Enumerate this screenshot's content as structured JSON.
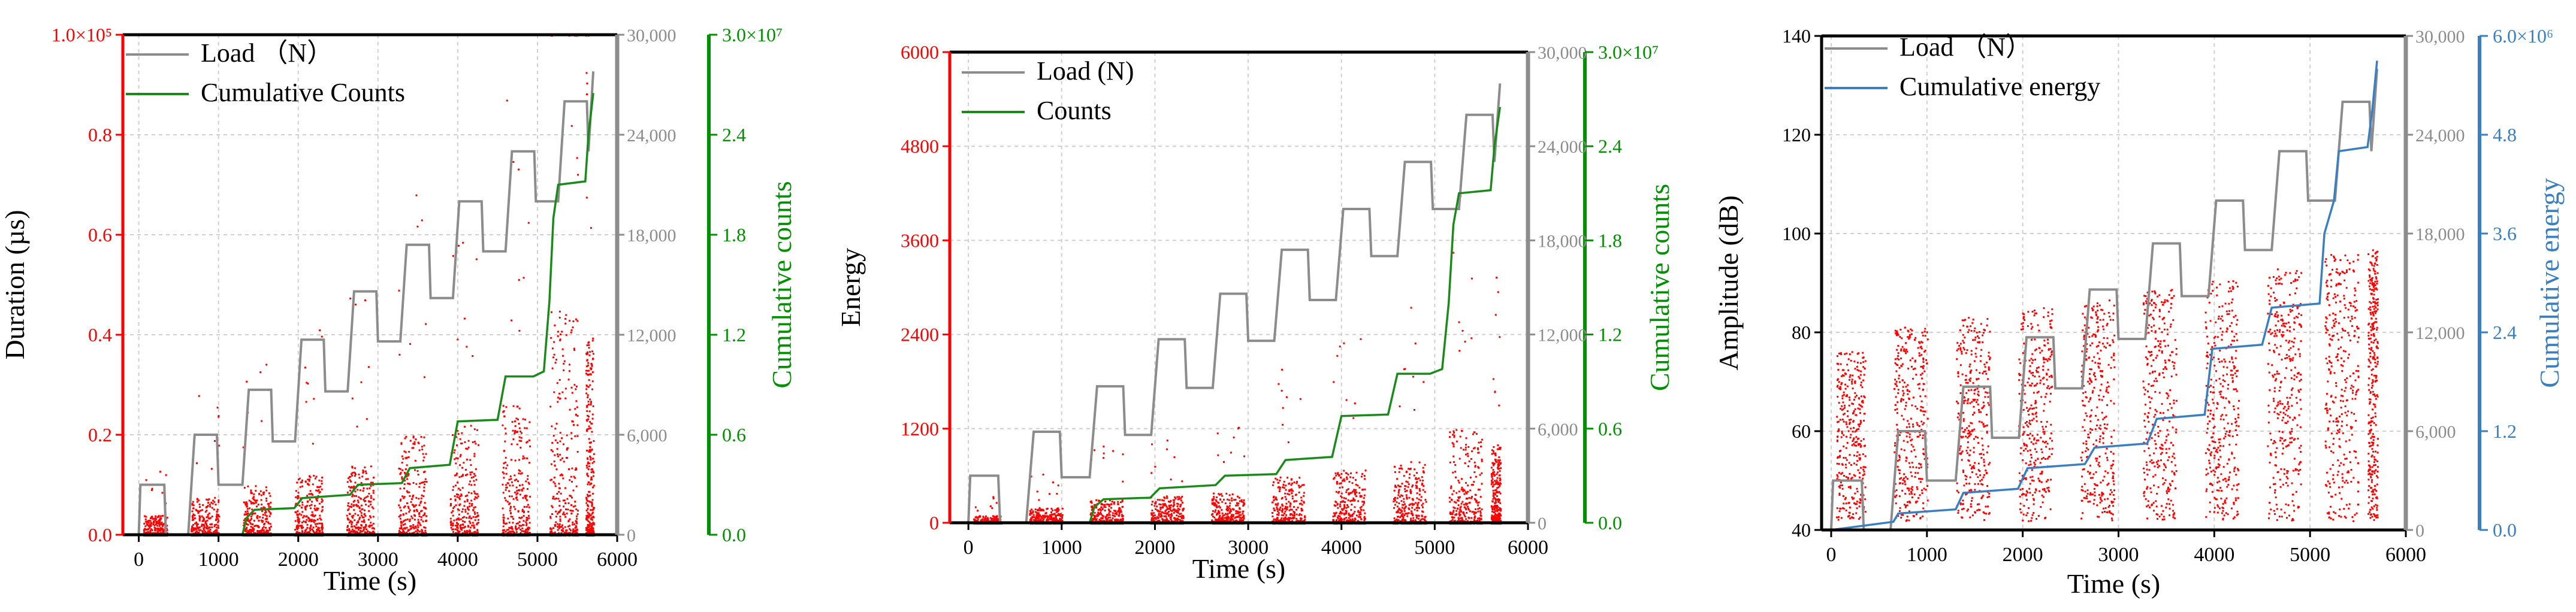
{
  "chart_data": [
    {
      "type": "line",
      "xlabel": "Time (s)",
      "xlim": [
        -200,
        6000
      ],
      "x_ticks": [
        "0",
        "1000",
        "2000",
        "3000",
        "4000",
        "5000",
        "6000"
      ],
      "left_axis": {
        "label": "Duration (µs)",
        "ylim": [
          0,
          100000
        ],
        "color": "#ff0000",
        "ticks": [
          "0.0",
          "0.2",
          "0.4",
          "0.6",
          "0.8",
          "1.0×10⁵"
        ]
      },
      "mid_axis": {
        "ylim": [
          0,
          30000
        ],
        "color": "#8c8c8c",
        "ticks": [
          "0",
          "6,000",
          "12,000",
          "18,000",
          "24,000",
          "30,000"
        ]
      },
      "right_axis": {
        "label": "Cumulative counts",
        "ylim": [
          0,
          30000000
        ],
        "color": "#009000",
        "ticks": [
          "0.0",
          "0.6",
          "1.2",
          "1.8",
          "2.4",
          "3.0×10⁷"
        ]
      },
      "legend": [
        {
          "name": "Load （N）",
          "color": "#8c8c8c"
        },
        {
          "name": "Cumulative Counts",
          "color": "#1a8a1a"
        }
      ],
      "series": [
        {
          "name": "Load （N）",
          "axis": "mid",
          "color": "#8c8c8c",
          "x": [
            0,
            20,
            320,
            340,
            620,
            700,
            980,
            1000,
            1300,
            1380,
            1660,
            1680,
            1960,
            2040,
            2320,
            2340,
            2620,
            2700,
            2980,
            3000,
            3280,
            3360,
            3640,
            3660,
            3940,
            4020,
            4300,
            4320,
            4600,
            4680,
            4960,
            4980,
            5260,
            5340,
            5620,
            5640,
            5700
          ],
          "y": [
            0,
            3000,
            3000,
            0,
            0,
            6000,
            6000,
            3000,
            3000,
            8700,
            8700,
            5600,
            5600,
            11700,
            11700,
            8600,
            8600,
            14600,
            14600,
            11600,
            11600,
            17400,
            17400,
            14200,
            14200,
            20000,
            20000,
            17000,
            17000,
            23000,
            23000,
            20000,
            20000,
            26000,
            26000,
            23000,
            27800
          ]
        },
        {
          "name": "Cumulative Counts",
          "axis": "right",
          "color": "#1a8a1a",
          "x": [
            0,
            1300,
            1350,
            1450,
            1950,
            2050,
            2650,
            2750,
            3300,
            3400,
            3900,
            4000,
            4500,
            4600,
            4950,
            5080,
            5150,
            5200,
            5260,
            5600,
            5640,
            5700
          ],
          "y": [
            0,
            0,
            1000000,
            1500000,
            1600000,
            2200000,
            2400000,
            3000000,
            3100000,
            4000000,
            4200000,
            6800000,
            6900000,
            9500000,
            9500000,
            9800000,
            14000000,
            19000000,
            21000000,
            21200000,
            24000000,
            26500000
          ]
        },
        {
          "name": "Duration bursts",
          "axis": "left",
          "color": "#ff0000",
          "type": "scatter-bursts",
          "bursts": [
            [
              50,
              350,
              4000
            ],
            [
              650,
              1000,
              8000
            ],
            [
              1300,
              1650,
              10000
            ],
            [
              1950,
              2300,
              12000
            ],
            [
              2600,
              2950,
              14000
            ],
            [
              3250,
              3600,
              20000
            ],
            [
              3900,
              4250,
              22000
            ],
            [
              4550,
              4900,
              26000
            ],
            [
              5150,
              5500,
              45000
            ],
            [
              5600,
              5700,
              40000
            ]
          ]
        }
      ]
    },
    {
      "type": "line",
      "xlabel": "Time (s)",
      "xlim": [
        -200,
        6000
      ],
      "x_ticks": [
        "0",
        "1000",
        "2000",
        "3000",
        "4000",
        "5000",
        "6000"
      ],
      "left_axis": {
        "label": "Energy",
        "ylim": [
          0,
          6000
        ],
        "color": "#ff0000",
        "ticks": [
          "0",
          "1200",
          "2400",
          "3600",
          "4800",
          "6000"
        ]
      },
      "mid_axis": {
        "ylim": [
          0,
          30000
        ],
        "color": "#8c8c8c",
        "ticks": [
          "0",
          "6,000",
          "12,000",
          "18,000",
          "24,000",
          "30,000"
        ]
      },
      "right_axis": {
        "label": "Cumulative counts",
        "ylim": [
          0,
          30000000
        ],
        "color": "#009000",
        "ticks": [
          "0.0",
          "0.6",
          "1.2",
          "1.8",
          "2.4",
          "3.0×10⁷"
        ]
      },
      "legend": [
        {
          "name": "Load (N)",
          "color": "#8c8c8c"
        },
        {
          "name": "Counts",
          "color": "#1a8a1a"
        }
      ],
      "series": [
        {
          "name": "Load (N)",
          "axis": "mid",
          "color": "#8c8c8c",
          "x": [
            0,
            20,
            320,
            340,
            620,
            700,
            980,
            1000,
            1300,
            1380,
            1660,
            1680,
            1960,
            2040,
            2320,
            2340,
            2620,
            2700,
            2980,
            3000,
            3280,
            3360,
            3640,
            3660,
            3940,
            4020,
            4300,
            4320,
            4600,
            4680,
            4960,
            4980,
            5260,
            5340,
            5620,
            5640,
            5700
          ],
          "y": [
            0,
            3000,
            3000,
            0,
            0,
            5800,
            5800,
            2900,
            2900,
            8700,
            8700,
            5600,
            5600,
            11700,
            11700,
            8600,
            8600,
            14600,
            14600,
            11600,
            11600,
            17400,
            17400,
            14200,
            14200,
            20000,
            20000,
            17000,
            17000,
            23000,
            23000,
            20000,
            20000,
            26000,
            26000,
            23000,
            28000
          ]
        },
        {
          "name": "Counts",
          "axis": "right",
          "color": "#1a8a1a",
          "x": [
            0,
            1300,
            1350,
            1450,
            1950,
            2050,
            2650,
            2750,
            3300,
            3400,
            3900,
            4000,
            4500,
            4600,
            4950,
            5080,
            5150,
            5200,
            5260,
            5600,
            5640,
            5700
          ],
          "y": [
            0,
            0,
            1000000,
            1500000,
            1600000,
            2200000,
            2400000,
            3000000,
            3100000,
            4000000,
            4200000,
            6800000,
            6900000,
            9500000,
            9500000,
            9800000,
            14000000,
            19000000,
            21000000,
            21200000,
            24000000,
            26500000
          ]
        },
        {
          "name": "Energy bursts",
          "axis": "left",
          "color": "#ff0000",
          "type": "scatter-bursts",
          "bursts": [
            [
              50,
              350,
              100
            ],
            [
              650,
              1000,
              200
            ],
            [
              1300,
              1650,
              300
            ],
            [
              1950,
              2300,
              350
            ],
            [
              2600,
              2950,
              400
            ],
            [
              3250,
              3600,
              600
            ],
            [
              3900,
              4250,
              700
            ],
            [
              4550,
              4900,
              800
            ],
            [
              5150,
              5500,
              1200
            ],
            [
              5600,
              5700,
              1000
            ]
          ]
        }
      ]
    },
    {
      "type": "line",
      "xlabel": "Time (s)",
      "xlim": [
        -100,
        6000
      ],
      "x_ticks": [
        "0",
        "1000",
        "2000",
        "3000",
        "4000",
        "5000",
        "6000"
      ],
      "left_axis": {
        "label": "Amplitude (dB)",
        "ylim": [
          38,
          140
        ],
        "color": "#000000",
        "ticks": [
          "40",
          "60",
          "80",
          "100",
          "120",
          "140"
        ]
      },
      "mid_axis": {
        "ylim": [
          0,
          30000
        ],
        "color": "#8c8c8c",
        "ticks": [
          "0",
          "6,000",
          "12,000",
          "18,000",
          "24,000",
          "30,000"
        ]
      },
      "right_axis": {
        "label": "Cumulative energy",
        "ylim": [
          0,
          6000000
        ],
        "color": "#3a7fbf",
        "ticks": [
          "0.0",
          "1.2",
          "2.4",
          "3.6",
          "4.8",
          "6.0×10⁶"
        ]
      },
      "legend": [
        {
          "name": "Load （N）",
          "color": "#8c8c8c"
        },
        {
          "name": "Cumulative energy",
          "color": "#3a7fbf"
        }
      ],
      "series": [
        {
          "name": "Load （N）",
          "axis": "mid",
          "color": "#8c8c8c",
          "x": [
            0,
            20,
            320,
            340,
            620,
            700,
            980,
            1000,
            1300,
            1380,
            1660,
            1680,
            1960,
            2040,
            2320,
            2340,
            2620,
            2700,
            2980,
            3000,
            3280,
            3360,
            3640,
            3660,
            3940,
            4020,
            4300,
            4320,
            4600,
            4680,
            4960,
            4980,
            5260,
            5340,
            5620,
            5640,
            5700
          ],
          "y": [
            0,
            3000,
            3000,
            0,
            0,
            6000,
            6000,
            3000,
            3000,
            8700,
            8700,
            5600,
            5600,
            11700,
            11700,
            8600,
            8600,
            14600,
            14600,
            11600,
            11600,
            17400,
            17400,
            14200,
            14200,
            20000,
            20000,
            17000,
            17000,
            23000,
            23000,
            20000,
            20000,
            26000,
            26000,
            23000,
            28000
          ]
        },
        {
          "name": "Cumulative energy",
          "axis": "right",
          "color": "#3a7fbf",
          "x": [
            0,
            650,
            700,
            1300,
            1380,
            1950,
            2050,
            2650,
            2750,
            3300,
            3400,
            3900,
            3980,
            4500,
            4600,
            5100,
            5150,
            5250,
            5300,
            5600,
            5650,
            5700
          ],
          "y": [
            0,
            100000,
            200000,
            250000,
            450000,
            500000,
            750000,
            800000,
            1000000,
            1050000,
            1350000,
            1400000,
            2200000,
            2250000,
            2700000,
            2750000,
            3600000,
            4000000,
            4600000,
            4650000,
            5100000,
            5700000
          ]
        },
        {
          "name": "Amplitude bursts",
          "axis": "left",
          "color": "#ff0000",
          "type": "scatter-bursts",
          "bursts": [
            [
              50,
              350,
              75
            ],
            [
              650,
              1000,
              80
            ],
            [
              1300,
              1650,
              82
            ],
            [
              1950,
              2300,
              84
            ],
            [
              2600,
              2950,
              86
            ],
            [
              3250,
              3600,
              88
            ],
            [
              3900,
              4250,
              90
            ],
            [
              4550,
              4900,
              92
            ],
            [
              5150,
              5500,
              95
            ],
            [
              5600,
              5700,
              96
            ]
          ]
        }
      ]
    }
  ]
}
